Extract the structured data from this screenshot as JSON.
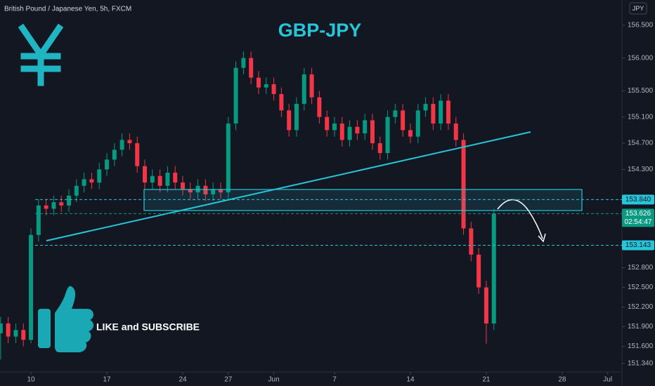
{
  "chart_data": {
    "type": "candlestick",
    "title": "GBP-JPY",
    "symbol_info": "British Pound / Japanese Yen, 5h, FXCM",
    "currency": "JPY",
    "annotation": "LIKE and SUBSCRIBE",
    "up_color": "#089981",
    "down_color": "#f23645",
    "grid": false,
    "xlim": [
      -2.04,
      38.94
    ],
    "ylim": [
      151.21,
      156.885
    ],
    "xticks": [
      {
        "value": 0,
        "label": "10"
      },
      {
        "value": 5,
        "label": "17"
      },
      {
        "value": 10,
        "label": "24"
      },
      {
        "value": 13,
        "label": "27"
      },
      {
        "value": 16,
        "label": "Jun"
      },
      {
        "value": 20,
        "label": "7"
      },
      {
        "value": 25,
        "label": "14"
      },
      {
        "value": 30,
        "label": "21"
      },
      {
        "value": 35,
        "label": "28"
      },
      {
        "value": 38,
        "label": "Jul"
      }
    ],
    "yticks": [
      {
        "value": 156.5,
        "label": "156.500"
      },
      {
        "value": 156,
        "label": "156.000"
      },
      {
        "value": 155.5,
        "label": "155.500"
      },
      {
        "value": 155.1,
        "label": "155.100"
      },
      {
        "value": 154.7,
        "label": "154.700"
      },
      {
        "value": 154.3,
        "label": "154.300"
      },
      {
        "value": 152.8,
        "label": "152.800"
      },
      {
        "value": 152.5,
        "label": "152.500"
      },
      {
        "value": 152.2,
        "label": "152.200"
      },
      {
        "value": 151.9,
        "label": "151.900"
      },
      {
        "value": 151.6,
        "label": "151.600"
      },
      {
        "value": 151.34,
        "label": "151.340"
      }
    ],
    "price_labels": [
      {
        "value": 153.84,
        "label": "153.840",
        "color": "#26c6da"
      },
      {
        "value": 153.626,
        "label": "153.626",
        "color": "#089981",
        "countdown": "02:54:47"
      },
      {
        "value": 153.143,
        "label": "153.143",
        "color": "#26c6da"
      }
    ],
    "x": [
      -2,
      -1.5,
      -1,
      -0.5,
      0,
      0.5,
      1,
      1.5,
      2,
      2.5,
      3,
      3.5,
      4,
      4.5,
      5,
      5.5,
      6,
      6.5,
      7,
      7.5,
      8,
      8.5,
      9,
      9.5,
      10,
      10.5,
      11,
      11.5,
      12,
      12.5,
      13,
      13.5,
      14,
      14.5,
      15,
      15.5,
      16,
      16.5,
      17,
      17.5,
      18,
      18.5,
      19,
      19.5,
      20,
      20.5,
      21,
      21.5,
      22,
      22.5,
      23,
      23.5,
      24,
      24.5,
      25,
      25.5,
      26,
      26.5,
      27,
      27.5,
      28,
      28.5,
      29,
      29.5,
      30,
      30.5
    ],
    "open": [
      151.8,
      151.95,
      151.75,
      151.85,
      151.7,
      153.3,
      153.75,
      153.7,
      153.8,
      153.75,
      153.9,
      154.05,
      154.15,
      154.1,
      154.3,
      154.45,
      154.6,
      154.75,
      154.7,
      154.35,
      154.1,
      154.2,
      154.05,
      154.25,
      154.1,
      154.0,
      153.95,
      154.05,
      153.92,
      154.0,
      153.95,
      155.0,
      155.85,
      156.0,
      155.7,
      155.55,
      155.6,
      155.45,
      155.2,
      154.9,
      155.3,
      155.75,
      155.4,
      155.1,
      154.9,
      155.0,
      154.75,
      154.95,
      154.85,
      155.05,
      154.7,
      154.55,
      155.1,
      155.2,
      154.9,
      154.8,
      155.2,
      155.3,
      155.0,
      155.35,
      155.0,
      154.75,
      153.4,
      153.0,
      152.5,
      151.95
    ],
    "high": [
      152.05,
      152.05,
      151.95,
      151.95,
      153.4,
      153.85,
      153.85,
      153.9,
      153.9,
      154.0,
      154.15,
      154.25,
      154.25,
      154.4,
      154.55,
      154.7,
      154.85,
      154.85,
      154.8,
      154.45,
      154.3,
      154.3,
      154.35,
      154.35,
      154.2,
      154.1,
      154.15,
      154.15,
      154.1,
      154.1,
      155.1,
      155.95,
      156.1,
      156.1,
      155.8,
      155.7,
      155.7,
      155.55,
      155.3,
      155.4,
      155.85,
      155.85,
      155.5,
      155.2,
      155.1,
      155.1,
      155.05,
      155.05,
      155.15,
      155.15,
      154.8,
      155.2,
      155.3,
      155.3,
      155.0,
      155.3,
      155.4,
      155.4,
      155.45,
      155.45,
      155.1,
      154.85,
      153.5,
      153.1,
      152.6,
      153.7
    ],
    "low": [
      151.4,
      151.65,
      151.65,
      151.6,
      151.65,
      153.2,
      153.6,
      153.6,
      153.65,
      153.65,
      153.8,
      153.95,
      154.0,
      154.0,
      154.2,
      154.35,
      154.5,
      154.6,
      154.25,
      154.0,
      154.0,
      153.95,
      153.95,
      154.0,
      153.9,
      153.85,
      153.85,
      153.82,
      153.82,
      153.85,
      153.85,
      154.9,
      155.75,
      155.6,
      155.45,
      155.45,
      155.35,
      155.1,
      154.8,
      154.8,
      155.2,
      155.3,
      155.0,
      154.8,
      154.8,
      154.65,
      154.65,
      154.75,
      154.75,
      154.6,
      154.45,
      154.45,
      155.0,
      154.8,
      154.7,
      154.7,
      155.1,
      154.9,
      154.9,
      154.9,
      154.65,
      153.3,
      152.9,
      152.4,
      151.64,
      151.85
    ],
    "close": [
      151.95,
      151.75,
      151.85,
      151.7,
      153.3,
      153.75,
      153.7,
      153.8,
      153.75,
      153.9,
      154.05,
      154.15,
      154.1,
      154.3,
      154.45,
      154.6,
      154.75,
      154.7,
      154.35,
      154.1,
      154.2,
      154.05,
      154.25,
      154.1,
      154.0,
      153.95,
      154.05,
      153.92,
      154.0,
      153.95,
      155.0,
      155.85,
      156.0,
      155.7,
      155.55,
      155.6,
      155.45,
      155.2,
      154.9,
      155.3,
      155.75,
      155.4,
      155.1,
      154.9,
      155.0,
      154.75,
      154.95,
      154.85,
      155.05,
      154.7,
      154.55,
      155.1,
      155.2,
      154.9,
      154.8,
      155.2,
      155.3,
      155.0,
      155.35,
      155.0,
      154.75,
      153.4,
      153.0,
      152.5,
      151.95,
      153.626
    ]
  }
}
